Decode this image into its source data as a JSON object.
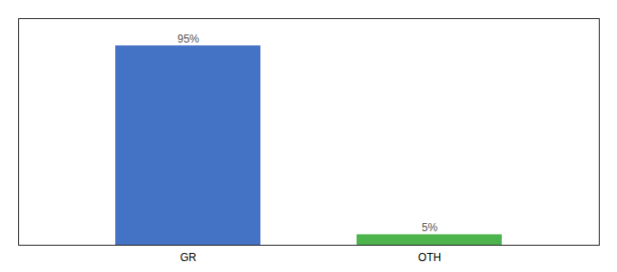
{
  "chart_data": {
    "type": "bar",
    "categories": [
      "GR",
      "OTH"
    ],
    "values": [
      95,
      5
    ],
    "value_labels": [
      "95%",
      "5%"
    ],
    "colors": [
      "#4472c4",
      "#4db34d"
    ],
    "ylim": [
      0,
      108
    ],
    "yticks": [],
    "tick_labels": "x",
    "data_labels": true,
    "grid": false
  }
}
